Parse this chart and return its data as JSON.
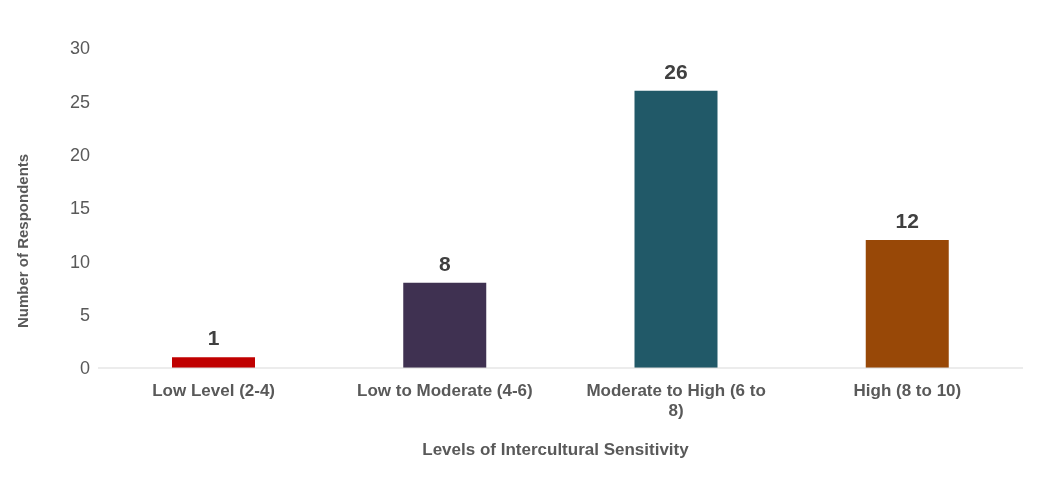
{
  "chart_data": {
    "type": "bar",
    "xlabel": "Levels of Intercultural Sensitivity",
    "ylabel": "Number of Respondents",
    "categories": [
      "Low Level (2-4)",
      "Low to Moderate (4-6)",
      "Moderate to High (6 to 8)",
      "High (8 to 10)"
    ],
    "values": [
      1,
      8,
      26,
      12
    ],
    "colors": [
      "#c00000",
      "#3f3151",
      "#215968",
      "#984807"
    ],
    "ylim": [
      0,
      30
    ],
    "yticks": [
      0,
      5,
      10,
      15,
      20,
      25,
      30
    ],
    "grid": false,
    "data_labels": true
  }
}
